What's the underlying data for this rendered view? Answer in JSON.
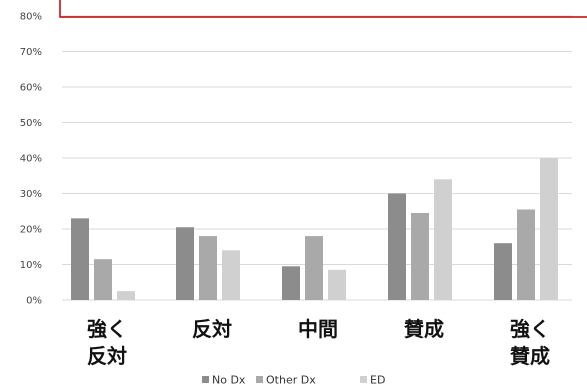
{
  "chart_data": {
    "type": "bar",
    "title": "",
    "xlabel": "",
    "ylabel": "",
    "ylim": [
      0,
      80
    ],
    "yticks": [
      0,
      10,
      20,
      30,
      40,
      50,
      60,
      70,
      80
    ],
    "ytick_labels": [
      "0%",
      "10%",
      "20%",
      "30%",
      "40%",
      "50%",
      "60%",
      "70%",
      "80%"
    ],
    "grid": true,
    "legend_position": "bottom",
    "categories": [
      [
        "強く",
        "反対"
      ],
      [
        "反対"
      ],
      [
        "中間"
      ],
      [
        "賛成"
      ],
      [
        "強く",
        "賛成"
      ]
    ],
    "series": [
      {
        "name": "No Dx",
        "color": "#8c8c8c",
        "values": [
          23,
          20.5,
          9.5,
          30,
          16
        ]
      },
      {
        "name": "Other Dx",
        "color": "#a9a9a9",
        "values": [
          11.5,
          18,
          18,
          24.5,
          25.5
        ]
      },
      {
        "name": "ED",
        "color": "#d0d0d0",
        "values": [
          2.5,
          14,
          8.5,
          34,
          40
        ]
      }
    ],
    "frame_color": "#c00000"
  }
}
